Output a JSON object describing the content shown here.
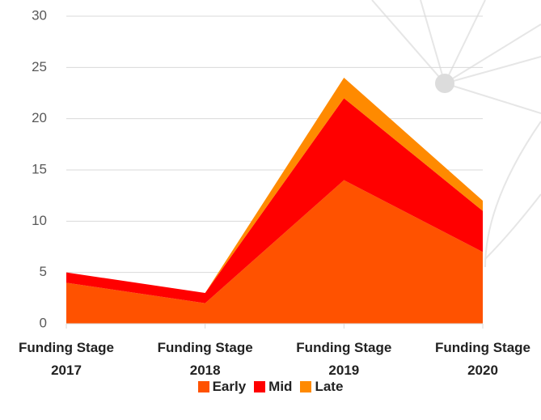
{
  "chart_data": {
    "type": "stacked_area",
    "categories": [
      "Funding Stage 2017",
      "Funding Stage 2018",
      "Funding Stage 2019",
      "Funding Stage 2020"
    ],
    "series": [
      {
        "name": "Early",
        "color": "#ff5200",
        "values": [
          4,
          2,
          14,
          7
        ]
      },
      {
        "name": "Mid",
        "color": "#ff0000",
        "values": [
          1,
          1,
          8,
          4
        ]
      },
      {
        "name": "Late",
        "color": "#ff8a00",
        "values": [
          0,
          0,
          2,
          1
        ]
      }
    ],
    "ylim": [
      0,
      30
    ],
    "yticks": [
      0,
      5,
      10,
      15,
      20,
      25,
      30
    ],
    "grid": true,
    "legend": "bottom"
  }
}
